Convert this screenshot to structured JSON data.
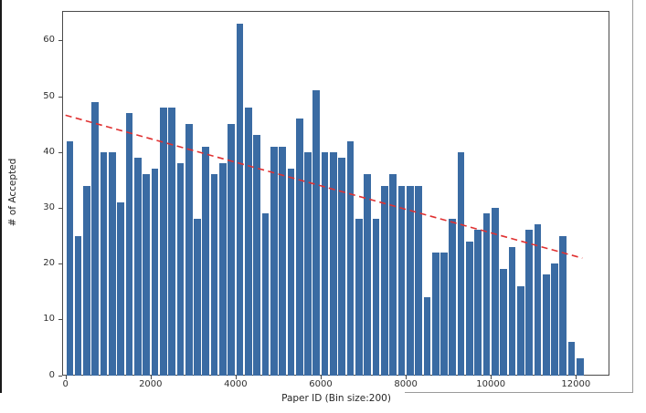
{
  "chart_data": {
    "type": "bar",
    "title": "",
    "xlabel": "Paper ID (Bin size:200)",
    "ylabel": "# of Accepted",
    "bin_size": 200,
    "bin_starts_from": 0,
    "values": [
      42,
      25,
      34,
      49,
      40,
      40,
      31,
      47,
      39,
      36,
      37,
      48,
      48,
      38,
      45,
      28,
      41,
      36,
      38,
      45,
      63,
      48,
      43,
      29,
      41,
      41,
      37,
      46,
      40,
      51,
      40,
      40,
      39,
      42,
      28,
      36,
      28,
      34,
      36,
      34,
      34,
      34,
      14,
      22,
      22,
      28,
      40,
      24,
      26,
      29,
      30,
      19,
      23,
      16,
      26,
      27,
      18,
      20,
      25,
      6,
      3
    ],
    "x_ticks": [
      0,
      2000,
      4000,
      6000,
      8000,
      10000,
      12000
    ],
    "y_ticks": [
      0,
      10,
      20,
      30,
      40,
      50,
      60
    ],
    "xlim": [
      -80,
      12780
    ],
    "ylim": [
      0,
      65.3
    ],
    "grid": false,
    "legend": "none",
    "trendline": {
      "x0": 0,
      "y0": 46.6,
      "x1": 12150,
      "y1": 21.0,
      "style": "dashed"
    },
    "colors": {
      "bar": "#3a6ba3",
      "trend": "#e03131",
      "axis": "#4a4a4a",
      "text": "#303030"
    }
  }
}
